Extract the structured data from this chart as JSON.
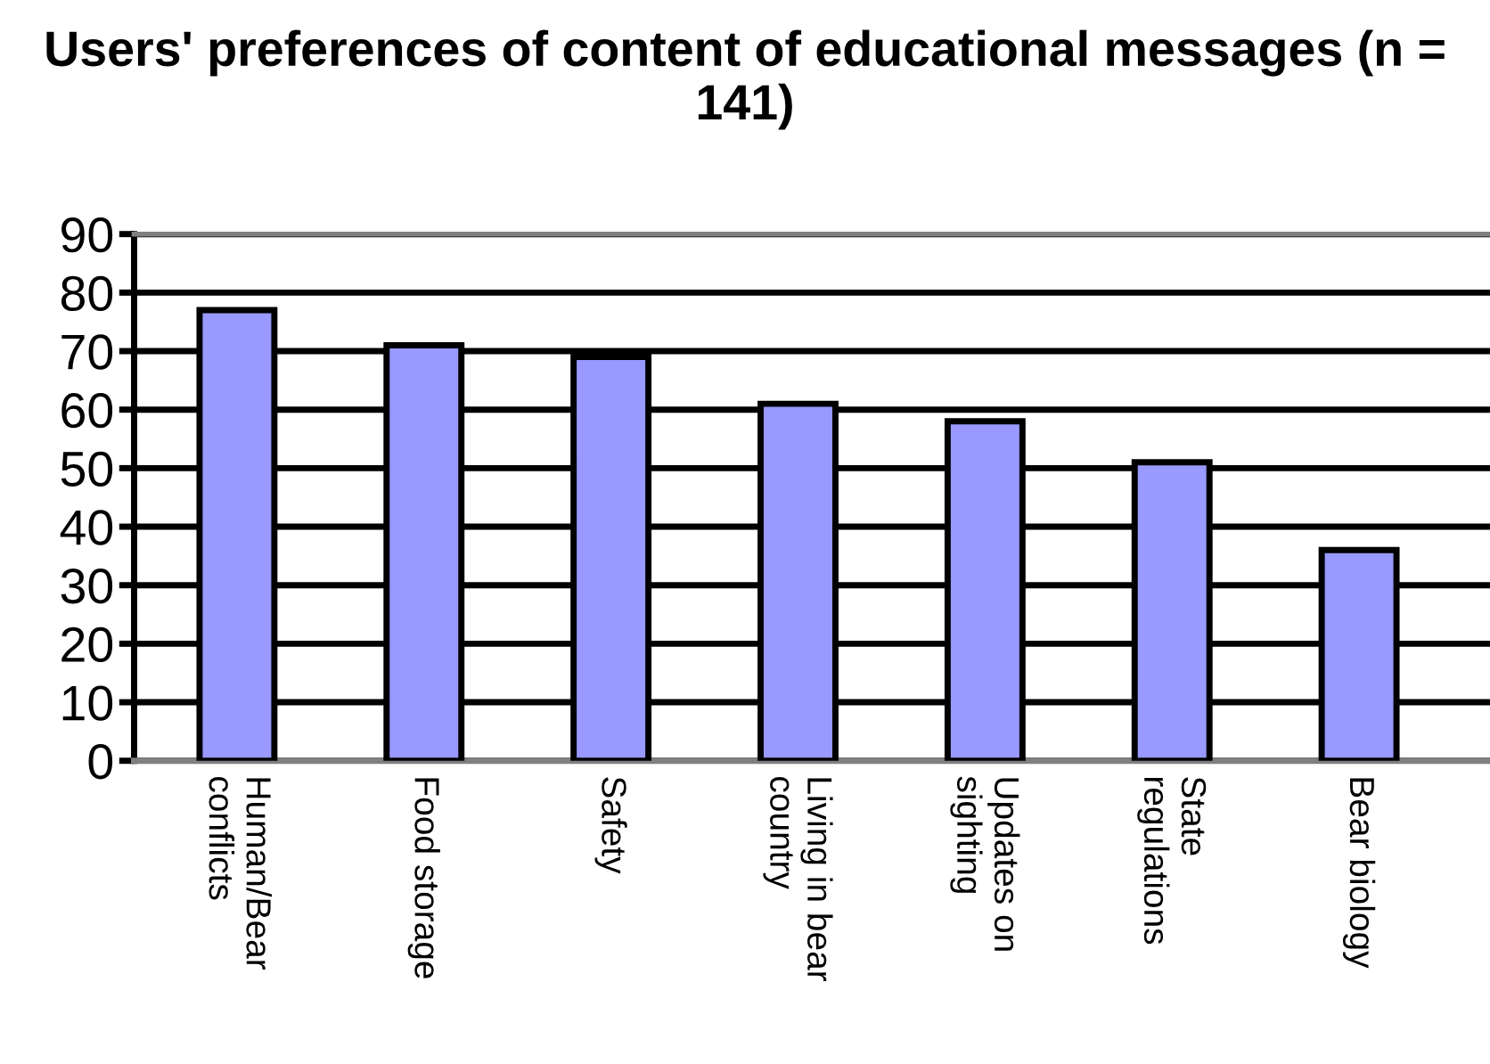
{
  "chart_data": {
    "type": "bar",
    "title": "Users' preferences of content of educational messages (n = 141)",
    "categories": [
      "Human/Bear conflicts",
      "Food storage",
      "Safety",
      "Living in bear country",
      "Updates on sighting",
      "State regulations",
      "Bear biology"
    ],
    "values": [
      77,
      71,
      69,
      61,
      58,
      51,
      36
    ],
    "color": "#9999ff",
    "ylim": [
      0,
      90
    ],
    "yticks": [
      0,
      10,
      20,
      30,
      40,
      50,
      60,
      70,
      80,
      90
    ],
    "grid": "y",
    "legend": false
  }
}
